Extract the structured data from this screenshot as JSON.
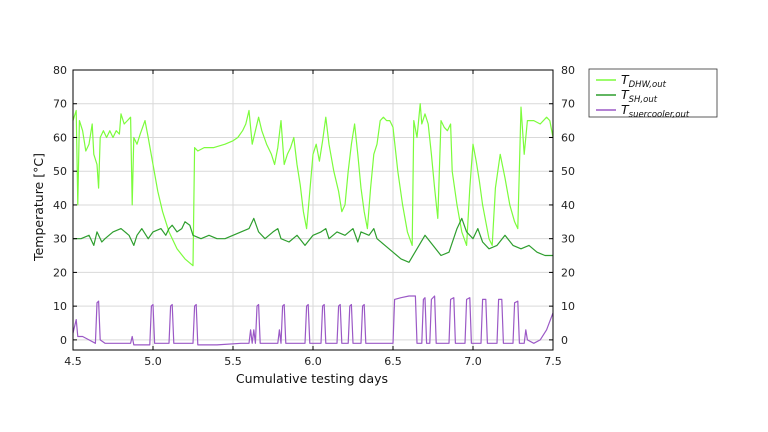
{
  "chart_data": {
    "type": "line",
    "title": "",
    "xlabel": "Cumulative testing days",
    "ylabel": "Temperature [°C]",
    "xlim": [
      4.5,
      7.5
    ],
    "ylim": [
      -3,
      80
    ],
    "xticks": [
      4.5,
      5.0,
      5.5,
      6.0,
      6.5,
      7.0,
      7.5
    ],
    "xtick_labels": [
      "4.5",
      "5.0",
      "5.5",
      "6.0",
      "6.5",
      "7.0",
      "7.5"
    ],
    "yticks": [
      0,
      10,
      20,
      30,
      40,
      50,
      60,
      70,
      80
    ],
    "ytick_labels": [
      "0",
      "10",
      "20",
      "30",
      "40",
      "50",
      "60",
      "70",
      "80"
    ],
    "grid": true,
    "right_axis_mirrored": true,
    "legend_position": "outside-top-right",
    "series": [
      {
        "name_base": "T",
        "name_sub": "DHW,out",
        "color": "#7CFC3C",
        "points": [
          [
            4.5,
            65
          ],
          [
            4.52,
            68
          ],
          [
            4.53,
            40
          ],
          [
            4.54,
            65
          ],
          [
            4.56,
            62
          ],
          [
            4.58,
            56
          ],
          [
            4.6,
            58
          ],
          [
            4.62,
            64
          ],
          [
            4.63,
            55
          ],
          [
            4.65,
            52
          ],
          [
            4.66,
            45
          ],
          [
            4.67,
            60
          ],
          [
            4.69,
            62
          ],
          [
            4.71,
            60
          ],
          [
            4.73,
            62
          ],
          [
            4.75,
            60
          ],
          [
            4.77,
            62
          ],
          [
            4.79,
            61
          ],
          [
            4.8,
            67
          ],
          [
            4.82,
            64
          ],
          [
            4.84,
            65
          ],
          [
            4.86,
            66
          ],
          [
            4.87,
            40
          ],
          [
            4.88,
            60
          ],
          [
            4.9,
            58
          ],
          [
            4.92,
            61
          ],
          [
            4.95,
            65
          ],
          [
            4.97,
            60
          ],
          [
            5.0,
            52
          ],
          [
            5.03,
            44
          ],
          [
            5.06,
            38
          ],
          [
            5.1,
            32
          ],
          [
            5.15,
            27
          ],
          [
            5.2,
            24
          ],
          [
            5.25,
            22
          ],
          [
            5.26,
            57
          ],
          [
            5.28,
            56
          ],
          [
            5.32,
            57
          ],
          [
            5.38,
            57
          ],
          [
            5.45,
            58
          ],
          [
            5.5,
            59
          ],
          [
            5.53,
            60
          ],
          [
            5.56,
            62
          ],
          [
            5.58,
            64
          ],
          [
            5.6,
            68
          ],
          [
            5.62,
            58
          ],
          [
            5.63,
            60
          ],
          [
            5.66,
            66
          ],
          [
            5.68,
            62
          ],
          [
            5.71,
            58
          ],
          [
            5.74,
            55
          ],
          [
            5.76,
            52
          ],
          [
            5.78,
            57
          ],
          [
            5.8,
            65
          ],
          [
            5.82,
            52
          ],
          [
            5.84,
            55
          ],
          [
            5.86,
            57
          ],
          [
            5.88,
            60
          ],
          [
            5.9,
            52
          ],
          [
            5.92,
            46
          ],
          [
            5.94,
            38
          ],
          [
            5.96,
            33
          ],
          [
            5.98,
            44
          ],
          [
            6.0,
            55
          ],
          [
            6.02,
            58
          ],
          [
            6.04,
            53
          ],
          [
            6.06,
            59
          ],
          [
            6.08,
            66
          ],
          [
            6.1,
            58
          ],
          [
            6.13,
            50
          ],
          [
            6.16,
            44
          ],
          [
            6.18,
            38
          ],
          [
            6.2,
            40
          ],
          [
            6.22,
            50
          ],
          [
            6.24,
            58
          ],
          [
            6.26,
            64
          ],
          [
            6.28,
            55
          ],
          [
            6.3,
            45
          ],
          [
            6.32,
            38
          ],
          [
            6.34,
            33
          ],
          [
            6.36,
            45
          ],
          [
            6.38,
            55
          ],
          [
            6.4,
            58
          ],
          [
            6.42,
            65
          ],
          [
            6.44,
            66
          ],
          [
            6.46,
            65
          ],
          [
            6.48,
            65
          ],
          [
            6.5,
            63
          ],
          [
            6.53,
            50
          ],
          [
            6.56,
            40
          ],
          [
            6.59,
            32
          ],
          [
            6.62,
            28
          ],
          [
            6.63,
            65
          ],
          [
            6.65,
            60
          ],
          [
            6.67,
            70
          ],
          [
            6.68,
            64
          ],
          [
            6.7,
            67
          ],
          [
            6.72,
            64
          ],
          [
            6.74,
            55
          ],
          [
            6.76,
            45
          ],
          [
            6.78,
            36
          ],
          [
            6.8,
            65
          ],
          [
            6.82,
            63
          ],
          [
            6.84,
            62
          ],
          [
            6.86,
            64
          ],
          [
            6.87,
            50
          ],
          [
            6.9,
            40
          ],
          [
            6.93,
            32
          ],
          [
            6.96,
            28
          ],
          [
            6.98,
            45
          ],
          [
            7.0,
            58
          ],
          [
            7.02,
            53
          ],
          [
            7.04,
            47
          ],
          [
            7.06,
            40
          ],
          [
            7.08,
            35
          ],
          [
            7.1,
            30
          ],
          [
            7.12,
            28
          ],
          [
            7.14,
            45
          ],
          [
            7.17,
            55
          ],
          [
            7.2,
            48
          ],
          [
            7.23,
            40
          ],
          [
            7.26,
            35
          ],
          [
            7.28,
            33
          ],
          [
            7.3,
            69
          ],
          [
            7.32,
            55
          ],
          [
            7.34,
            65
          ],
          [
            7.38,
            65
          ],
          [
            7.42,
            64
          ],
          [
            7.46,
            66
          ],
          [
            7.48,
            65
          ],
          [
            7.5,
            60
          ]
        ]
      },
      {
        "name_base": "T",
        "name_sub": "SH,out",
        "color": "#2E9E2E",
        "points": [
          [
            4.5,
            30
          ],
          [
            4.55,
            30
          ],
          [
            4.6,
            31
          ],
          [
            4.63,
            28
          ],
          [
            4.65,
            32
          ],
          [
            4.68,
            29
          ],
          [
            4.7,
            30
          ],
          [
            4.75,
            32
          ],
          [
            4.8,
            33
          ],
          [
            4.85,
            31
          ],
          [
            4.88,
            28
          ],
          [
            4.9,
            31
          ],
          [
            4.93,
            33
          ],
          [
            4.97,
            30
          ],
          [
            5.0,
            32
          ],
          [
            5.05,
            33
          ],
          [
            5.08,
            31
          ],
          [
            5.1,
            33
          ],
          [
            5.12,
            34
          ],
          [
            5.15,
            32
          ],
          [
            5.18,
            33
          ],
          [
            5.2,
            35
          ],
          [
            5.23,
            34
          ],
          [
            5.25,
            31
          ],
          [
            5.3,
            30
          ],
          [
            5.35,
            31
          ],
          [
            5.4,
            30
          ],
          [
            5.45,
            30
          ],
          [
            5.5,
            31
          ],
          [
            5.55,
            32
          ],
          [
            5.6,
            33
          ],
          [
            5.63,
            36
          ],
          [
            5.66,
            32
          ],
          [
            5.7,
            30
          ],
          [
            5.75,
            32
          ],
          [
            5.78,
            33
          ],
          [
            5.8,
            30
          ],
          [
            5.85,
            29
          ],
          [
            5.9,
            31
          ],
          [
            5.95,
            28
          ],
          [
            6.0,
            31
          ],
          [
            6.05,
            32
          ],
          [
            6.08,
            33
          ],
          [
            6.1,
            30
          ],
          [
            6.15,
            32
          ],
          [
            6.2,
            31
          ],
          [
            6.25,
            33
          ],
          [
            6.28,
            29
          ],
          [
            6.3,
            32
          ],
          [
            6.35,
            31
          ],
          [
            6.38,
            33
          ],
          [
            6.4,
            30
          ],
          [
            6.45,
            28
          ],
          [
            6.5,
            26
          ],
          [
            6.55,
            24
          ],
          [
            6.6,
            23
          ],
          [
            6.65,
            27
          ],
          [
            6.7,
            31
          ],
          [
            6.75,
            28
          ],
          [
            6.8,
            25
          ],
          [
            6.85,
            26
          ],
          [
            6.9,
            33
          ],
          [
            6.93,
            36
          ],
          [
            6.96,
            32
          ],
          [
            7.0,
            30
          ],
          [
            7.03,
            33
          ],
          [
            7.06,
            29
          ],
          [
            7.1,
            27
          ],
          [
            7.15,
            28
          ],
          [
            7.2,
            31
          ],
          [
            7.25,
            28
          ],
          [
            7.3,
            27
          ],
          [
            7.35,
            28
          ],
          [
            7.4,
            26
          ],
          [
            7.45,
            25
          ],
          [
            7.5,
            25
          ]
        ]
      },
      {
        "name_base": "T",
        "name_sub": "suercooler,out",
        "color": "#9B59C6",
        "points": [
          [
            4.5,
            2
          ],
          [
            4.52,
            6
          ],
          [
            4.53,
            1
          ],
          [
            4.56,
            1
          ],
          [
            4.6,
            0
          ],
          [
            4.64,
            -1
          ],
          [
            4.65,
            11
          ],
          [
            4.66,
            11.5
          ],
          [
            4.67,
            0
          ],
          [
            4.7,
            -1
          ],
          [
            4.8,
            -1
          ],
          [
            4.86,
            -1
          ],
          [
            4.87,
            1
          ],
          [
            4.88,
            -1.5
          ],
          [
            4.9,
            -1.5
          ],
          [
            4.98,
            -1.5
          ],
          [
            4.99,
            10
          ],
          [
            5.0,
            10.5
          ],
          [
            5.01,
            -1
          ],
          [
            5.1,
            -1
          ],
          [
            5.11,
            10
          ],
          [
            5.12,
            10.5
          ],
          [
            5.13,
            -1
          ],
          [
            5.25,
            -1
          ],
          [
            5.26,
            10
          ],
          [
            5.27,
            10.5
          ],
          [
            5.28,
            -1.5
          ],
          [
            5.4,
            -1.5
          ],
          [
            5.55,
            -1
          ],
          [
            5.6,
            -1
          ],
          [
            5.61,
            3
          ],
          [
            5.62,
            -1
          ],
          [
            5.63,
            3
          ],
          [
            5.64,
            -1
          ],
          [
            5.65,
            10
          ],
          [
            5.66,
            10.5
          ],
          [
            5.67,
            -1
          ],
          [
            5.78,
            -1
          ],
          [
            5.79,
            3
          ],
          [
            5.8,
            -1
          ],
          [
            5.81,
            10
          ],
          [
            5.82,
            10.5
          ],
          [
            5.83,
            -1
          ],
          [
            5.95,
            -1
          ],
          [
            5.96,
            10
          ],
          [
            5.97,
            10.5
          ],
          [
            5.98,
            -1
          ],
          [
            6.05,
            -1
          ],
          [
            6.06,
            10
          ],
          [
            6.07,
            10.5
          ],
          [
            6.08,
            -1
          ],
          [
            6.15,
            -1
          ],
          [
            6.16,
            10
          ],
          [
            6.17,
            10.5
          ],
          [
            6.18,
            -1
          ],
          [
            6.22,
            -1
          ],
          [
            6.23,
            10
          ],
          [
            6.24,
            10.5
          ],
          [
            6.25,
            -1
          ],
          [
            6.3,
            -1
          ],
          [
            6.31,
            10
          ],
          [
            6.32,
            10.5
          ],
          [
            6.33,
            -1
          ],
          [
            6.4,
            -1
          ],
          [
            6.5,
            -1
          ],
          [
            6.51,
            12
          ],
          [
            6.55,
            12.5
          ],
          [
            6.6,
            13
          ],
          [
            6.64,
            13
          ],
          [
            6.65,
            -1
          ],
          [
            6.68,
            -1
          ],
          [
            6.69,
            12
          ],
          [
            6.7,
            12.5
          ],
          [
            6.71,
            -1
          ],
          [
            6.73,
            -1
          ],
          [
            6.74,
            12
          ],
          [
            6.76,
            13
          ],
          [
            6.77,
            -1
          ],
          [
            6.85,
            -1
          ],
          [
            6.86,
            12
          ],
          [
            6.88,
            12.5
          ],
          [
            6.89,
            -1
          ],
          [
            6.95,
            -1
          ],
          [
            6.96,
            12
          ],
          [
            6.98,
            12.5
          ],
          [
            6.99,
            -1
          ],
          [
            7.05,
            -1
          ],
          [
            7.06,
            12
          ],
          [
            7.08,
            12
          ],
          [
            7.09,
            -1
          ],
          [
            7.15,
            -1
          ],
          [
            7.16,
            12
          ],
          [
            7.18,
            12
          ],
          [
            7.19,
            -1
          ],
          [
            7.25,
            -1
          ],
          [
            7.26,
            11
          ],
          [
            7.28,
            11.5
          ],
          [
            7.29,
            -1
          ],
          [
            7.32,
            -1
          ],
          [
            7.33,
            3
          ],
          [
            7.34,
            0
          ],
          [
            7.38,
            -1
          ],
          [
            7.42,
            0
          ],
          [
            7.46,
            3
          ],
          [
            7.5,
            8
          ]
        ]
      }
    ]
  }
}
